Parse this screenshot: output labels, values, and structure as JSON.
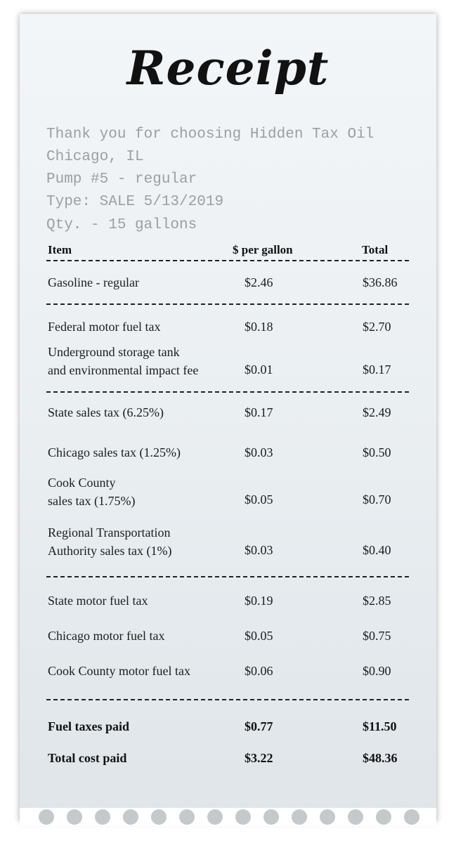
{
  "title": "Receipt",
  "info": {
    "line1": "Thank you for choosing Hidden Tax Oil",
    "line2": "Chicago, IL",
    "line3": "Pump #5 - regular",
    "line4": "Type: SALE 5/13/2019",
    "line5": "Qty. - 15 gallons"
  },
  "headers": {
    "item": "Item",
    "per_gallon": "$ per gallon",
    "total": "Total"
  },
  "rows": [
    {
      "item": "Gasoline - regular",
      "per_gallon": "$2.46",
      "total": "$36.86"
    },
    {
      "item": "Federal motor fuel tax",
      "per_gallon": "$0.18",
      "total": "$2.70"
    },
    {
      "item_line1": "Underground storage tank",
      "item_line2": "and environmental impact fee",
      "per_gallon": "$0.01",
      "total": "$0.17"
    },
    {
      "item": "State sales tax (6.25%)",
      "per_gallon": "$0.17",
      "total": "$2.49"
    },
    {
      "item": "Chicago sales tax (1.25%)",
      "per_gallon": "$0.03",
      "total": "$0.50"
    },
    {
      "item_line1": "Cook County",
      "item_line2": "sales tax (1.75%)",
      "per_gallon": "$0.05",
      "total": "$0.70"
    },
    {
      "item_line1": "Regional Transportation",
      "item_line2": "Authority sales tax (1%)",
      "per_gallon": "$0.03",
      "total": "$0.40"
    },
    {
      "item": "State motor fuel tax",
      "per_gallon": "$0.19",
      "total": "$2.85"
    },
    {
      "item": "Chicago motor fuel tax",
      "per_gallon": "$0.05",
      "total": "$0.75"
    },
    {
      "item": "Cook County motor fuel tax",
      "per_gallon": "$0.06",
      "total": "$0.90"
    }
  ],
  "summary": {
    "fuel_taxes": {
      "label": "Fuel taxes paid",
      "per_gallon": "$0.77",
      "total": "$11.50"
    },
    "total_cost": {
      "label": "Total cost paid",
      "per_gallon": "$3.22",
      "total": "$48.36"
    }
  }
}
